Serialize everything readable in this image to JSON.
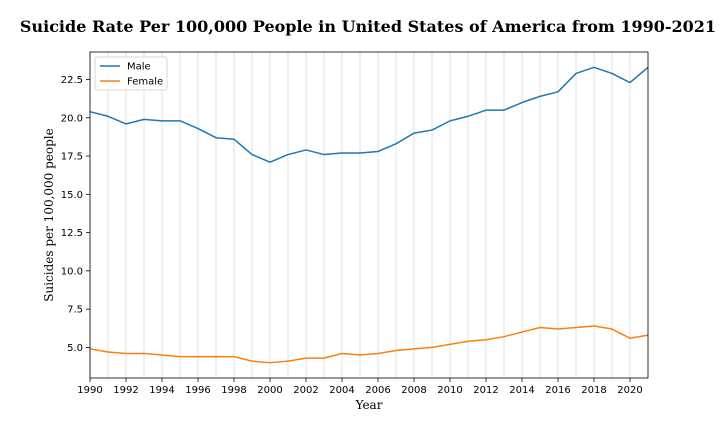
{
  "chart_data": {
    "type": "line",
    "title": "Suicide Rate Per 100,000 People in United States of America from 1990-2021",
    "xlabel": "Year",
    "ylabel": "Suicides per 100,000 people",
    "x": [
      1990,
      1991,
      1992,
      1993,
      1994,
      1995,
      1996,
      1997,
      1998,
      1999,
      2000,
      2001,
      2002,
      2003,
      2004,
      2005,
      2006,
      2007,
      2008,
      2009,
      2010,
      2011,
      2012,
      2013,
      2014,
      2015,
      2016,
      2017,
      2018,
      2019,
      2020,
      2021
    ],
    "xlim": [
      1990,
      2021
    ],
    "ylim": [
      3.0,
      24.3
    ],
    "xticks": [
      1990,
      1992,
      1994,
      1996,
      1998,
      2000,
      2002,
      2004,
      2006,
      2008,
      2010,
      2012,
      2014,
      2016,
      2018,
      2020
    ],
    "yticks": [
      5.0,
      7.5,
      10.0,
      12.5,
      15.0,
      17.5,
      20.0,
      22.5
    ],
    "ytick_labels": [
      "5.0",
      "7.5",
      "10.0",
      "12.5",
      "15.0",
      "17.5",
      "20.0",
      "22.5"
    ],
    "grid": "vertical",
    "legend_position": "top-left",
    "series": [
      {
        "name": "Male",
        "color": "#1f77b4",
        "values": [
          20.4,
          20.1,
          19.6,
          19.9,
          19.8,
          19.8,
          19.3,
          18.7,
          18.6,
          17.6,
          17.1,
          17.6,
          17.9,
          17.6,
          17.7,
          17.7,
          17.8,
          18.3,
          19.0,
          19.2,
          19.8,
          20.1,
          20.5,
          20.5,
          21.0,
          21.4,
          21.7,
          22.9,
          23.3,
          22.9,
          22.3,
          23.3
        ]
      },
      {
        "name": "Female",
        "color": "#ff7f0e",
        "values": [
          4.9,
          4.7,
          4.6,
          4.6,
          4.5,
          4.4,
          4.4,
          4.4,
          4.4,
          4.1,
          4.0,
          4.1,
          4.3,
          4.3,
          4.6,
          4.5,
          4.6,
          4.8,
          4.9,
          5.0,
          5.2,
          5.4,
          5.5,
          5.7,
          6.0,
          6.3,
          6.2,
          6.3,
          6.4,
          6.2,
          5.6,
          5.8
        ]
      }
    ]
  }
}
